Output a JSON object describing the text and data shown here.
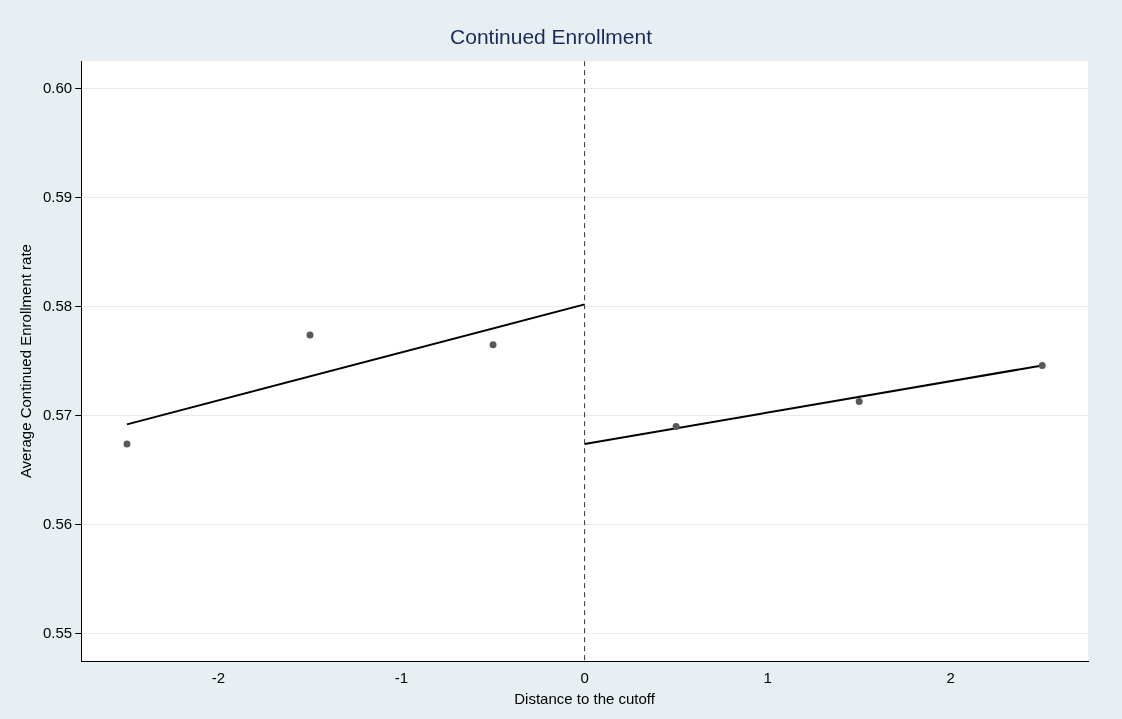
{
  "chart_data": {
    "type": "scatter",
    "title": "Continued Enrollment",
    "xlabel": "Distance to the cutoff",
    "ylabel": "Average Continued Enrollment rate",
    "xlim": [
      -2.75,
      2.75
    ],
    "xticks": [
      -2,
      -1,
      0,
      1,
      2
    ],
    "ylim": [
      0.5475,
      0.6025
    ],
    "yticks": [
      0.55,
      0.56,
      0.57,
      0.58,
      0.59,
      {
        "value": 0.6,
        "label": "0.60"
      }
    ],
    "grid": "y",
    "legend": false,
    "series": [
      {
        "color": "#595959",
        "marker": "circle",
        "x": [
          -2.5,
          -1.5,
          -0.5,
          0.5,
          1.5,
          2.5
        ],
        "values": [
          0.5674,
          0.5774,
          0.5765,
          0.569,
          0.5713,
          0.5746
        ]
      },
      {
        "type": "line",
        "color": "#000000",
        "marker": "none",
        "x": [
          -2.5,
          0
        ],
        "values": [
          0.5692,
          0.5802
        ]
      },
      {
        "type": "line",
        "color": "#000000",
        "marker": "none",
        "x": [
          0,
          2.5
        ],
        "values": [
          0.5674,
          0.5746
        ]
      }
    ],
    "ref_lines": [
      {
        "axis": "x",
        "value": 0,
        "color": "#333333",
        "line_style": "dashed"
      }
    ]
  }
}
